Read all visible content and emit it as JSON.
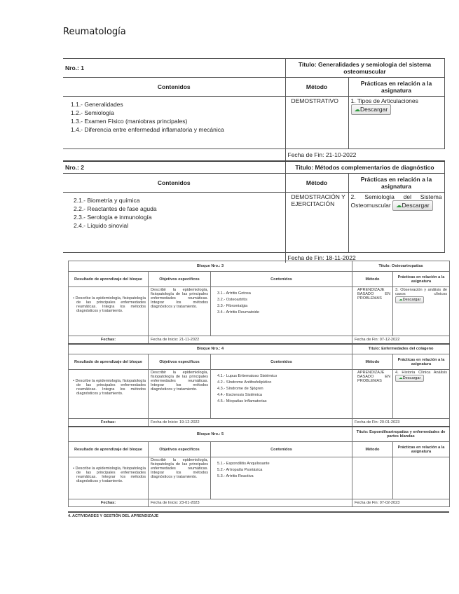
{
  "page_title": "Reumatología",
  "units": [
    {
      "nro": "Nro.: 1",
      "titulo": "Titulo: Generalidades y semiologia del sistema osteomuscular",
      "h_contenidos": "Contenidos",
      "h_metodo": "Método",
      "h_practicas": "Prácticas en relación a la asignatura",
      "contenidos": [
        "1.1.- Generalidades",
        "1.2.- Semiología",
        "1.3.- Examen Físico (maniobras principales)",
        "1.4.- Diferencia entre enfermedad inflamatoria y mecánica"
      ],
      "metodo": "DEMOSTRATIVO",
      "practica": "1. Tipos de Articulaciones",
      "download": "Descargar",
      "fecha_fin": "Fecha de Fin: 21-10-2022"
    },
    {
      "nro": "Nro.: 2",
      "titulo": "Titulo: Métodos complementarios de diagnóstico",
      "h_contenidos": "Contenidos",
      "h_metodo": "Método",
      "h_practicas": "Prácticas en relación a la asignatura",
      "contenidos": [
        "2.1.- Biometría y química",
        "2.2.- Reactantes de fase aguda",
        "2.3.- Serología e inmunología",
        "2.4.- Líquido sinovial"
      ],
      "metodo": "DEMOSTRACIÓN Y EJERCITACIÓN",
      "practica": "2. Semiología del Sistema Osteomuscular",
      "download": "Descargar",
      "fecha_fin": "Fecha de Fin: 18-11-2022"
    }
  ],
  "blocks": [
    {
      "bloque": "Bloque Nro.: 3",
      "titulo": "Titulo: Osteoartropatias",
      "h_resultado": "Resultado de aprendizaje del bloque",
      "h_objetivos": "Objetivos especificos",
      "h_contenidos": "Contenidos",
      "h_metodo": "Método",
      "h_practicas": "Prácticas en relación a la asignatura",
      "resultado": "• Describe la epidemiología, fisiopatología de las principales enfermedades reumáticas. Integra los métodos diagnósticos y tratamiento.",
      "objetivos": "Describir la epidemiología, fisiopatología de las principales enfermedades reumáticas. Integrar los métodos diagnósticos y tratamiento.",
      "contenidos": [
        "3.1.- Artritis Gotosa",
        "3.2.- Osteoartritis",
        "3.3.- Fibromialgia",
        "3.4.- Artritis Reumatoide"
      ],
      "metodo": "APRENDIZAJE BASADO EN PROBLEMAS",
      "practica": "3. Observación y análisis de casos clínicos",
      "download": "Descargar",
      "fechas": "Fechas:",
      "inicio": "Fecha de Inicio: 21-11-2022",
      "fin": "Fecha de Fin: 07-12-2022"
    },
    {
      "bloque": "Bloque Nro.: 4",
      "titulo": "Titulo: Enfermedades del colágeno",
      "h_resultado": "Resultado de aprendizaje del bloque",
      "h_objetivos": "Objetivos especificos",
      "h_contenidos": "Contenidos",
      "h_metodo": "Método",
      "h_practicas": "Prácticas en relación a la asignatura",
      "resultado": "• Describe la epidemiología, fisiopatología de las principales enfermedades reumáticas. Integra los métodos diagnósticos y tratamiento.",
      "objetivos": "Describir la epidemiología, fisiopatología de las principales enfermedades reumáticas. Integrar los métodos diagnósticos y tratamiento.",
      "contenidos": [
        "4.1.- Lupus Eritematoso Sistémico",
        "4.2.- Síndrome Antifosfolipídico",
        "4.3.- Síndrome de Sjögren",
        "4.4.- Esclerosis Sistémica",
        "4.5.- Miopatías Inflamatorias"
      ],
      "metodo": "APRENDIZAJE BASADO EN PROBLEMAS",
      "practica": "4. Historia Clínica Análisis",
      "download": "Descargar",
      "fechas": "Fechas:",
      "inicio": "Fecha de Inicio: 19-12-2022",
      "fin": "Fecha de Fin: 20-01-2023"
    },
    {
      "bloque": "Bloque Nro.: 5",
      "titulo": "Titulo: Espondiloartropatias y enfermedades de partes blandas",
      "h_resultado": "Resultado de aprendizaje del bloque",
      "h_objetivos": "Objetivos especificos",
      "h_contenidos": "Contenidos",
      "h_metodo": "Método",
      "h_practicas": "Prácticas en relación a la asignatura",
      "resultado": "• Describe la epidemiología, fisiopatología de las principales enfermedades reumáticas. Integrar los métodos diagnósticos y tratamiento.",
      "objetivos": "Describir la epidemiología, fisiopatología de las principales enfermedades reumáticas. Integrar los métodos diagnósticos y tratamiento.",
      "contenidos": [
        "5.1.- Espondilitis Anquilosante",
        "5.2.- Artropatía Psoriásica",
        "5.3.- Artritis Reactiva"
      ],
      "fechas": "Fechas:",
      "inicio": "Fecha de Inicio: 23-01-2023",
      "fin": "Fecha de Fin: 07-02-2023"
    }
  ],
  "footer_heading": "4. ACTIVIDADES Y GESTIÓN DEL APRENDIZAJE",
  "colors": {
    "download_icon": "#2e9a3c"
  }
}
